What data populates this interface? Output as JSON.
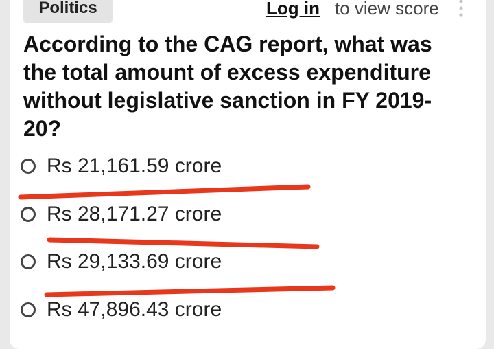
{
  "header": {
    "category": "Politics",
    "login_label": "Log in",
    "view_score_text": "to view score",
    "more_icon": "vertical-dots-icon"
  },
  "question": {
    "text": "According to the CAG report, what was the total amount of excess expenditure without legislative sanction in FY 2019-20?"
  },
  "options": [
    {
      "label": "Rs 21,161.59 crore",
      "selected": false
    },
    {
      "label": "Rs 28,171.27 crore",
      "selected": false
    },
    {
      "label": "Rs 29,133.69 crore",
      "selected": false
    },
    {
      "label": "Rs 47,896.43 crore",
      "selected": false
    }
  ],
  "colors": {
    "annotation_line": "#e8371a",
    "background": "#e9e9e9",
    "card": "#ffffff",
    "tag_background": "#e4e4e4"
  }
}
